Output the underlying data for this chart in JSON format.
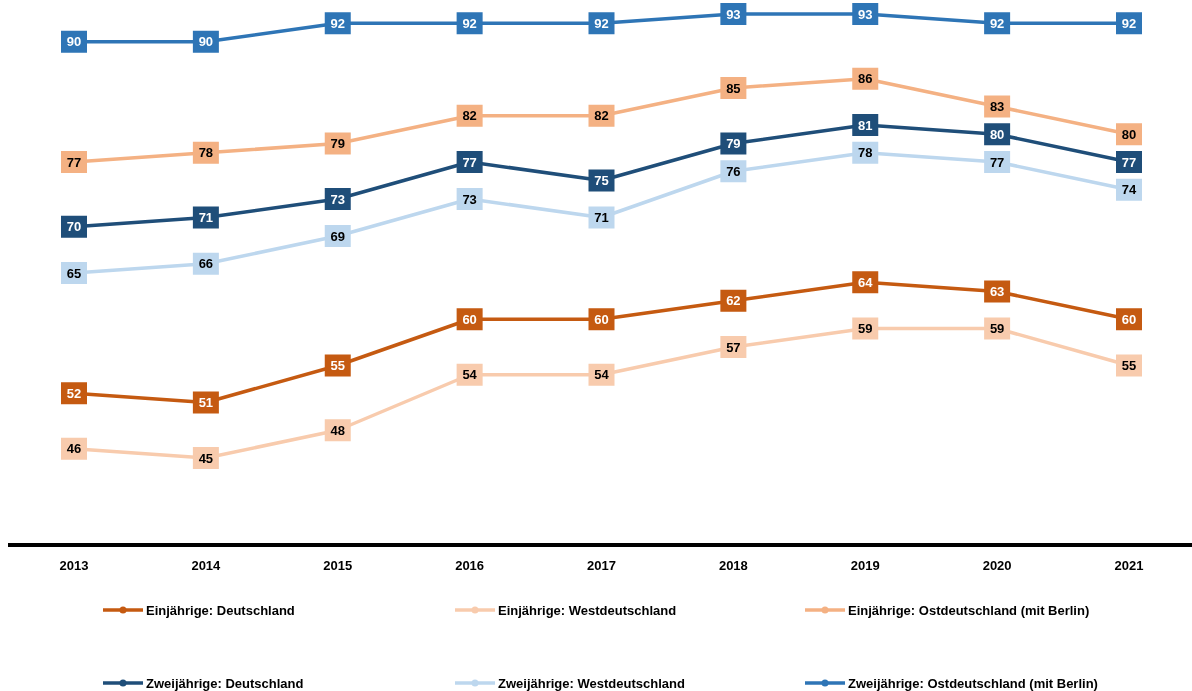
{
  "chart_data": {
    "type": "line",
    "categories": [
      "2013",
      "2014",
      "2015",
      "2016",
      "2017",
      "2018",
      "2019",
      "2020",
      "2021"
    ],
    "series": [
      {
        "name": "Einjährige: Deutschland",
        "color": "#c55a11",
        "values": [
          52,
          51,
          55,
          60,
          60,
          62,
          64,
          63,
          60
        ]
      },
      {
        "name": "Einjährige: Westdeutschland",
        "color": "#f8cbad",
        "values": [
          46,
          45,
          48,
          54,
          54,
          57,
          59,
          59,
          55
        ]
      },
      {
        "name": "Einjährige: Ostdeutschland (mit Berlin)",
        "color": "#f4b183",
        "values": [
          77,
          78,
          79,
          82,
          82,
          85,
          86,
          83,
          80
        ]
      },
      {
        "name": "Zweijährige: Deutschland",
        "color": "#1f4e79",
        "values": [
          70,
          71,
          73,
          77,
          75,
          79,
          81,
          80,
          77
        ]
      },
      {
        "name": "Zweijährige: Westdeutschland",
        "color": "#bdd7ee",
        "values": [
          65,
          66,
          69,
          73,
          71,
          76,
          78,
          77,
          74
        ]
      },
      {
        "name": "Zweijährige: Ostdeutschland (mit Berlin)",
        "color": "#2e75b6",
        "values": [
          90,
          90,
          92,
          92,
          92,
          93,
          93,
          92,
          92
        ]
      }
    ],
    "marker": "square",
    "data_labels": true,
    "legend": "bottom",
    "tick_labels": "x"
  }
}
